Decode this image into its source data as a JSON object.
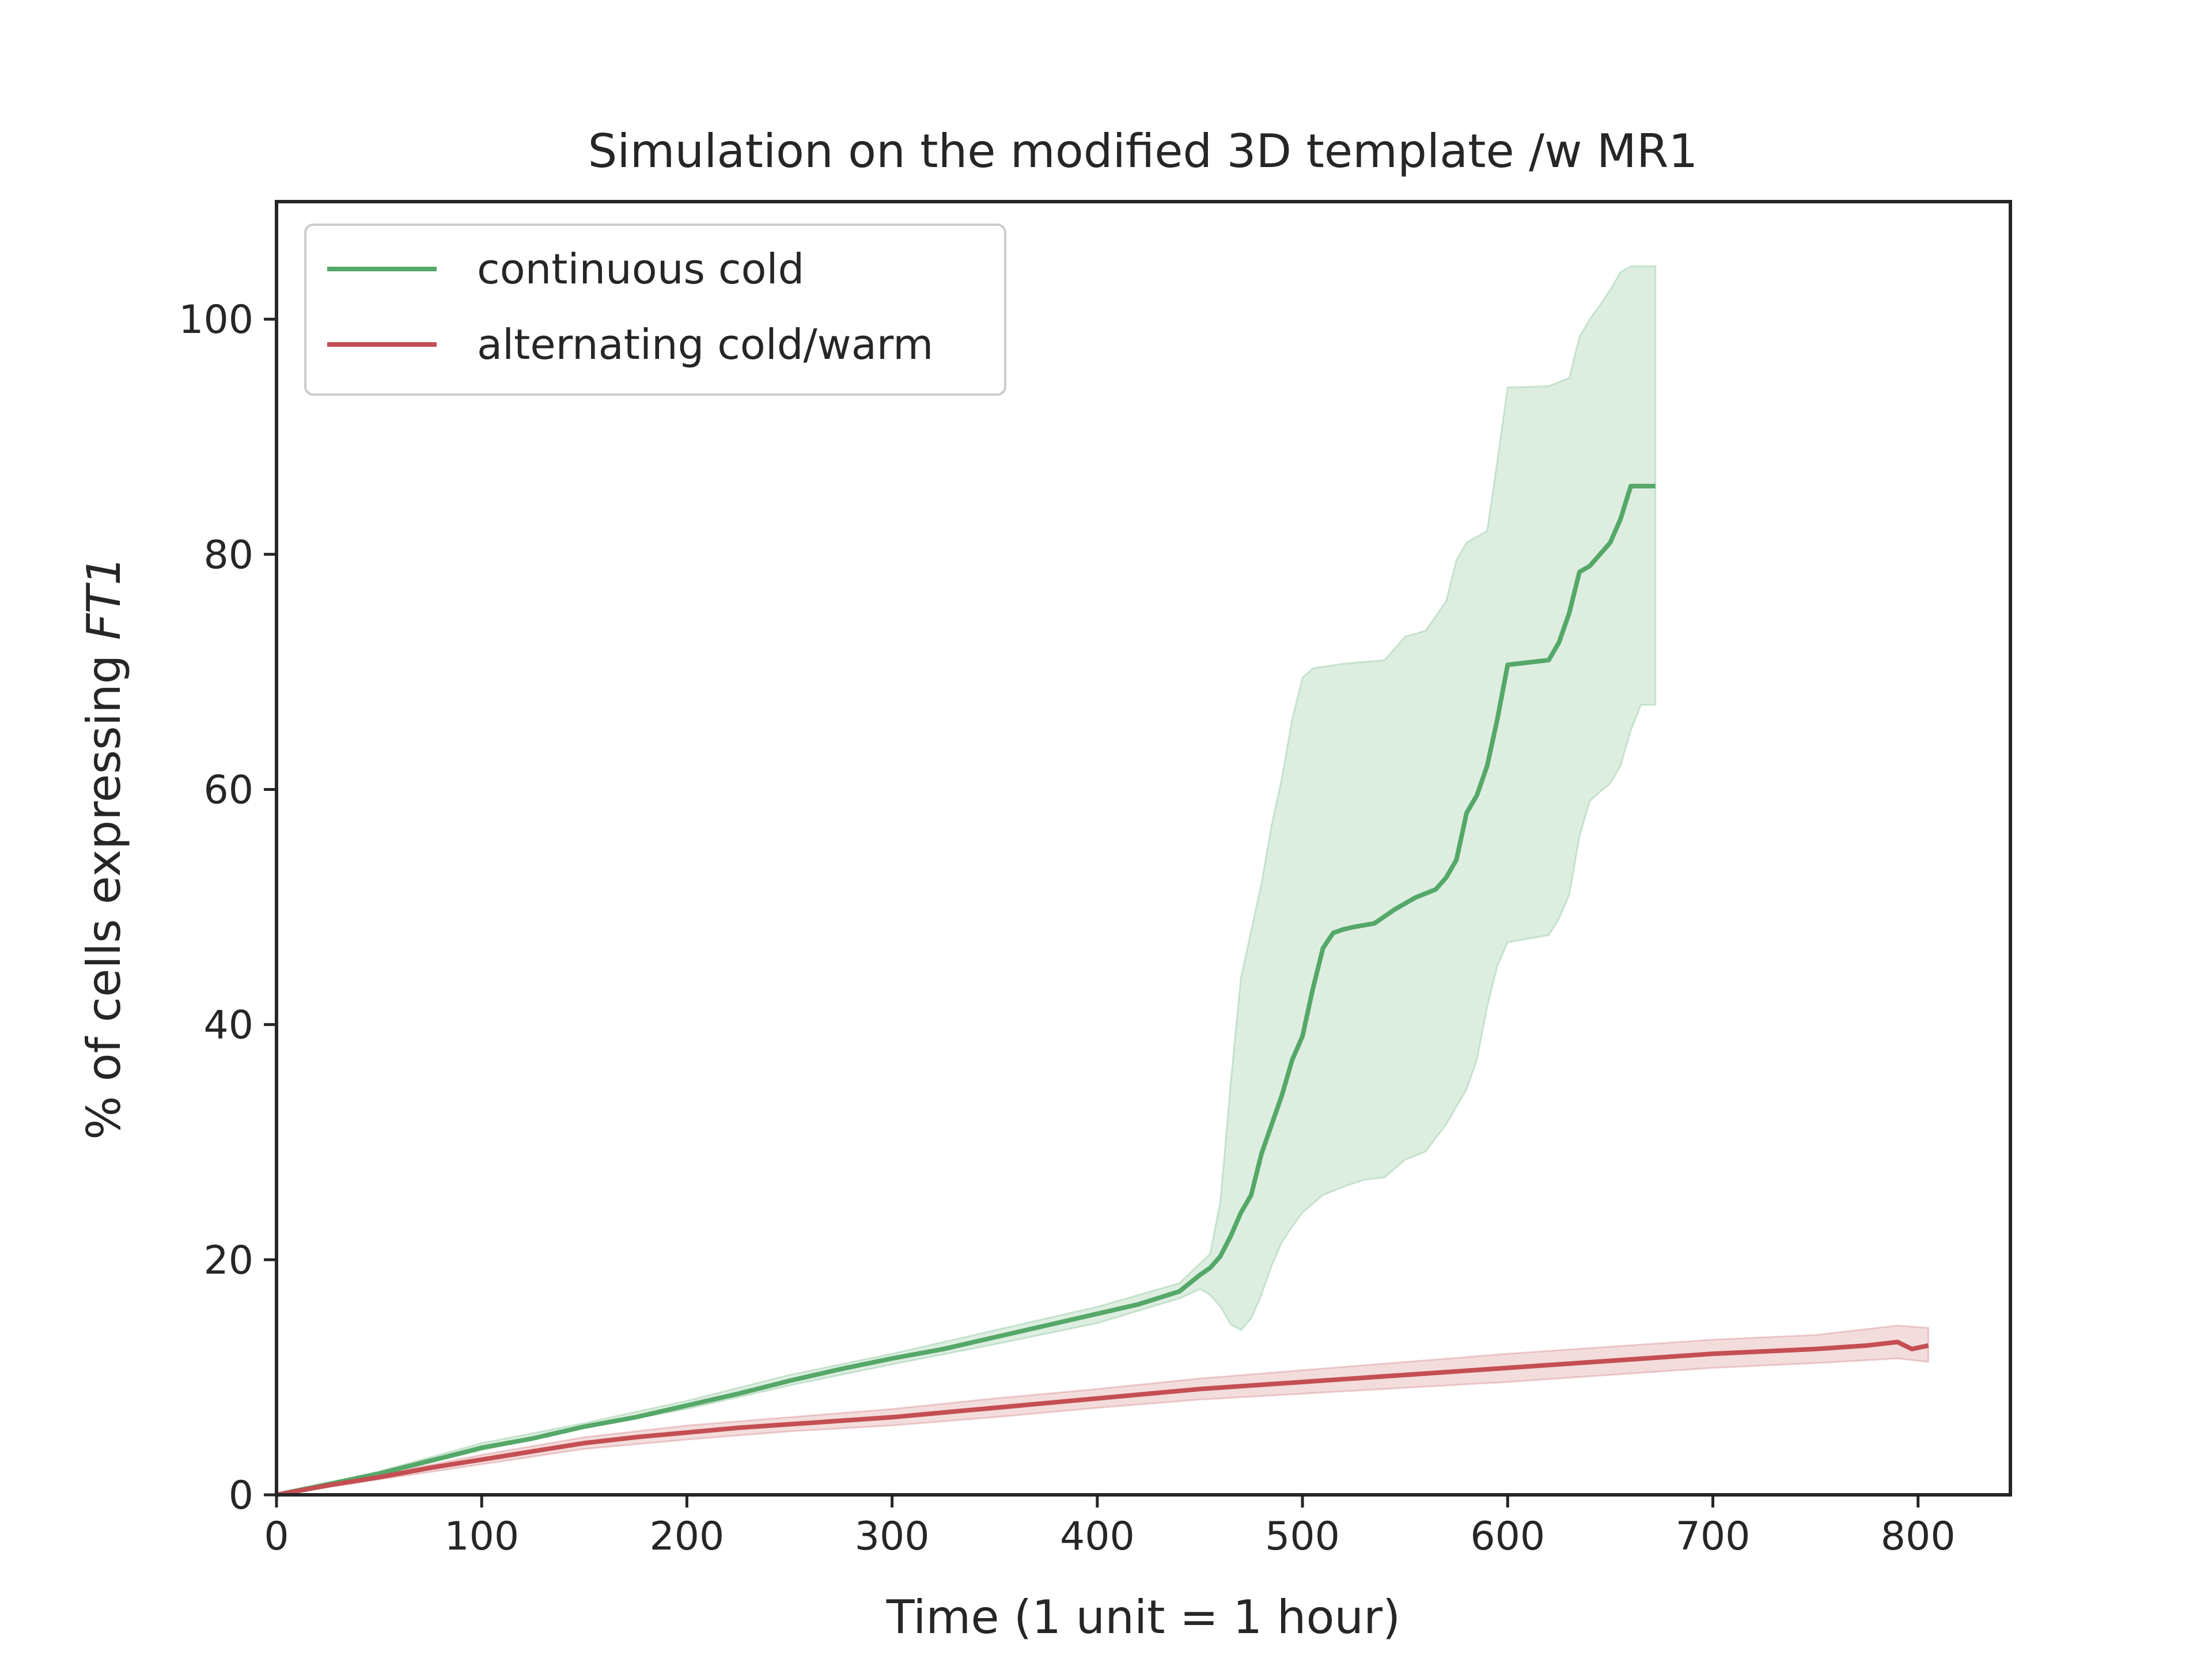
{
  "chart_data": {
    "type": "line",
    "title": "Simulation on the modified 3D template /w MR1",
    "xlabel": "Time (1 unit = 1 hour)",
    "ylabel_main": "% of cells expressing ",
    "ylabel_italic": "FT1",
    "xlim": [
      0,
      845
    ],
    "ylim": [
      0,
      110
    ],
    "xticks": [
      0,
      100,
      200,
      300,
      400,
      500,
      600,
      700,
      800
    ],
    "yticks": [
      0,
      20,
      40,
      60,
      80,
      100
    ],
    "grid": false,
    "legend_position": "upper-left",
    "colors": {
      "continuous": "#55a868",
      "alternating": "#c44e52"
    },
    "series": [
      {
        "name": "continuous cold",
        "color": "#55a868",
        "points": [
          [
            0,
            0
          ],
          [
            25,
            0.9
          ],
          [
            50,
            1.8
          ],
          [
            75,
            2.9
          ],
          [
            100,
            4.0
          ],
          [
            125,
            4.8
          ],
          [
            150,
            5.8
          ],
          [
            175,
            6.6
          ],
          [
            200,
            7.6
          ],
          [
            225,
            8.6
          ],
          [
            250,
            9.7
          ],
          [
            275,
            10.7
          ],
          [
            300,
            11.6
          ],
          [
            325,
            12.4
          ],
          [
            350,
            13.4
          ],
          [
            375,
            14.4
          ],
          [
            400,
            15.4
          ],
          [
            420,
            16.2
          ],
          [
            440,
            17.3
          ],
          [
            450,
            18.7
          ],
          [
            455,
            19.3
          ],
          [
            460,
            20.3
          ],
          [
            465,
            22.0
          ],
          [
            470,
            24.0
          ],
          [
            475,
            25.5
          ],
          [
            480,
            29.0
          ],
          [
            485,
            31.5
          ],
          [
            490,
            34.0
          ],
          [
            495,
            37.0
          ],
          [
            500,
            39.0
          ],
          [
            505,
            43.0
          ],
          [
            510,
            46.5
          ],
          [
            515,
            47.8
          ],
          [
            520,
            48.1
          ],
          [
            525,
            48.3
          ],
          [
            535,
            48.6
          ],
          [
            545,
            49.8
          ],
          [
            555,
            50.8
          ],
          [
            565,
            51.5
          ],
          [
            570,
            52.5
          ],
          [
            575,
            54.0
          ],
          [
            580,
            58.0
          ],
          [
            585,
            59.5
          ],
          [
            590,
            62.0
          ],
          [
            595,
            66.0
          ],
          [
            600,
            70.6
          ],
          [
            610,
            70.8
          ],
          [
            620,
            71.0
          ],
          [
            625,
            72.5
          ],
          [
            630,
            75.0
          ],
          [
            635,
            78.5
          ],
          [
            640,
            79.0
          ],
          [
            645,
            80.0
          ],
          [
            650,
            81.0
          ],
          [
            655,
            83.0
          ],
          [
            660,
            85.8
          ],
          [
            672,
            85.8
          ]
        ],
        "ci_upper": [
          [
            0,
            0
          ],
          [
            50,
            2.0
          ],
          [
            100,
            4.4
          ],
          [
            150,
            6.1
          ],
          [
            200,
            8.0
          ],
          [
            250,
            10.2
          ],
          [
            300,
            12.0
          ],
          [
            350,
            14.0
          ],
          [
            400,
            16.0
          ],
          [
            440,
            18.0
          ],
          [
            455,
            20.5
          ],
          [
            460,
            25.0
          ],
          [
            465,
            35.0
          ],
          [
            470,
            44.0
          ],
          [
            475,
            48.0
          ],
          [
            480,
            52.0
          ],
          [
            485,
            57.0
          ],
          [
            490,
            61.0
          ],
          [
            495,
            66.0
          ],
          [
            500,
            69.5
          ],
          [
            505,
            70.3
          ],
          [
            520,
            70.7
          ],
          [
            540,
            71.0
          ],
          [
            550,
            73.0
          ],
          [
            560,
            73.5
          ],
          [
            570,
            76.0
          ],
          [
            575,
            79.5
          ],
          [
            580,
            81.0
          ],
          [
            590,
            82.0
          ],
          [
            595,
            88.0
          ],
          [
            600,
            94.2
          ],
          [
            620,
            94.3
          ],
          [
            630,
            95.0
          ],
          [
            635,
            98.5
          ],
          [
            640,
            100.0
          ],
          [
            645,
            101.2
          ],
          [
            650,
            102.5
          ],
          [
            655,
            104.0
          ],
          [
            660,
            104.5
          ],
          [
            672,
            104.5
          ]
        ],
        "ci_lower": [
          [
            0,
            0
          ],
          [
            50,
            1.7
          ],
          [
            100,
            3.8
          ],
          [
            150,
            5.7
          ],
          [
            200,
            7.3
          ],
          [
            250,
            9.3
          ],
          [
            300,
            11.1
          ],
          [
            350,
            12.8
          ],
          [
            400,
            14.6
          ],
          [
            440,
            16.7
          ],
          [
            450,
            17.5
          ],
          [
            455,
            17.0
          ],
          [
            460,
            16.0
          ],
          [
            465,
            14.5
          ],
          [
            470,
            14.0
          ],
          [
            475,
            15.0
          ],
          [
            480,
            17.0
          ],
          [
            485,
            19.5
          ],
          [
            490,
            21.5
          ],
          [
            495,
            22.8
          ],
          [
            500,
            24.0
          ],
          [
            510,
            25.5
          ],
          [
            520,
            26.2
          ],
          [
            530,
            26.8
          ],
          [
            540,
            27.0
          ],
          [
            550,
            28.5
          ],
          [
            560,
            29.2
          ],
          [
            570,
            31.5
          ],
          [
            580,
            34.5
          ],
          [
            585,
            37.0
          ],
          [
            590,
            41.5
          ],
          [
            595,
            45.0
          ],
          [
            600,
            47.0
          ],
          [
            620,
            47.6
          ],
          [
            625,
            49.0
          ],
          [
            630,
            51.0
          ],
          [
            635,
            56.0
          ],
          [
            640,
            59.0
          ],
          [
            645,
            59.8
          ],
          [
            650,
            60.5
          ],
          [
            655,
            62.0
          ],
          [
            660,
            65.0
          ],
          [
            665,
            67.2
          ],
          [
            672,
            67.2
          ]
        ]
      },
      {
        "name": "alternating cold/warm",
        "color": "#c44e52",
        "points": [
          [
            0,
            0
          ],
          [
            25,
            0.8
          ],
          [
            50,
            1.5
          ],
          [
            75,
            2.3
          ],
          [
            100,
            3.0
          ],
          [
            125,
            3.7
          ],
          [
            150,
            4.4
          ],
          [
            175,
            4.9
          ],
          [
            200,
            5.3
          ],
          [
            225,
            5.7
          ],
          [
            250,
            6.0
          ],
          [
            275,
            6.3
          ],
          [
            300,
            6.6
          ],
          [
            325,
            7.0
          ],
          [
            350,
            7.4
          ],
          [
            375,
            7.8
          ],
          [
            400,
            8.2
          ],
          [
            425,
            8.6
          ],
          [
            450,
            9.0
          ],
          [
            475,
            9.3
          ],
          [
            500,
            9.6
          ],
          [
            525,
            9.9
          ],
          [
            550,
            10.2
          ],
          [
            575,
            10.5
          ],
          [
            600,
            10.8
          ],
          [
            625,
            11.1
          ],
          [
            650,
            11.4
          ],
          [
            675,
            11.7
          ],
          [
            700,
            12.0
          ],
          [
            725,
            12.2
          ],
          [
            750,
            12.4
          ],
          [
            775,
            12.7
          ],
          [
            790,
            13.0
          ],
          [
            797,
            12.4
          ],
          [
            805,
            12.7
          ]
        ],
        "ci_upper": [
          [
            0,
            0
          ],
          [
            50,
            1.7
          ],
          [
            100,
            3.4
          ],
          [
            150,
            4.9
          ],
          [
            200,
            5.9
          ],
          [
            250,
            6.6
          ],
          [
            300,
            7.3
          ],
          [
            350,
            8.2
          ],
          [
            400,
            9.0
          ],
          [
            450,
            9.9
          ],
          [
            500,
            10.6
          ],
          [
            550,
            11.3
          ],
          [
            600,
            12.0
          ],
          [
            650,
            12.6
          ],
          [
            700,
            13.2
          ],
          [
            750,
            13.6
          ],
          [
            790,
            14.4
          ],
          [
            805,
            14.2
          ]
        ],
        "ci_lower": [
          [
            0,
            0
          ],
          [
            50,
            1.3
          ],
          [
            100,
            2.6
          ],
          [
            150,
            3.9
          ],
          [
            200,
            4.7
          ],
          [
            250,
            5.4
          ],
          [
            300,
            5.9
          ],
          [
            350,
            6.6
          ],
          [
            400,
            7.4
          ],
          [
            450,
            8.1
          ],
          [
            500,
            8.6
          ],
          [
            550,
            9.1
          ],
          [
            600,
            9.6
          ],
          [
            650,
            10.2
          ],
          [
            700,
            10.8
          ],
          [
            750,
            11.2
          ],
          [
            790,
            11.6
          ],
          [
            805,
            11.3
          ]
        ]
      }
    ]
  }
}
